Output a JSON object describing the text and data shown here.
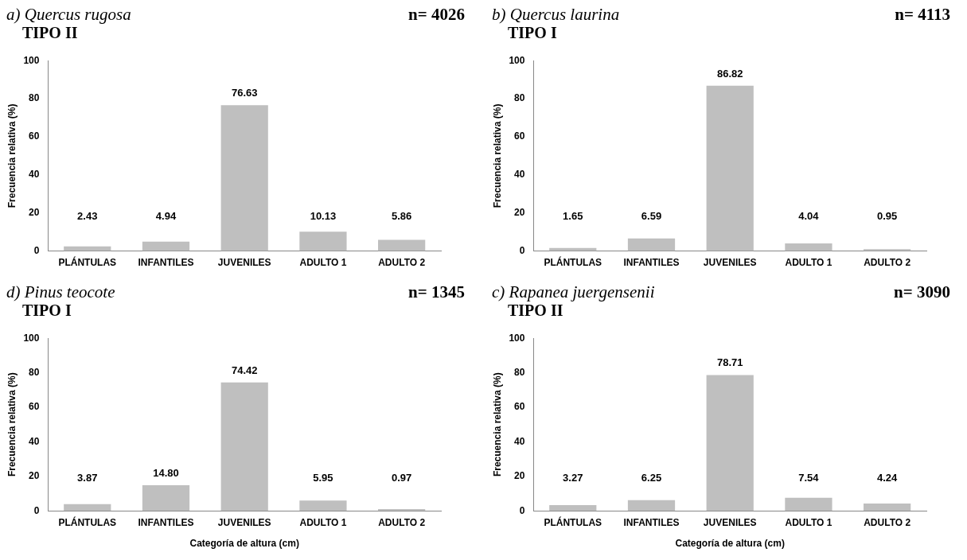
{
  "chart_data": [
    {
      "type": "bar",
      "title": "a) Quercus rugosa",
      "subtitle": "TIPO II",
      "annotations": [
        "n= 4026"
      ],
      "ylabel": "Frecuencia relativa (%)",
      "categories": [
        "PLÁNTULAS",
        "INFANTILES",
        "JUVENILES",
        "ADULTO 1",
        "ADULTO 2"
      ],
      "values": [
        2.43,
        4.94,
        76.63,
        10.13,
        5.86
      ],
      "value_labels": [
        "2.43",
        "4.94",
        "76.63",
        "10.13",
        "5.86"
      ],
      "color": "#bfbfbf",
      "ylim": [
        0,
        100
      ],
      "yticks": [
        0,
        20,
        40,
        60,
        80,
        100
      ],
      "grid": false,
      "legend": false
    },
    {
      "type": "bar",
      "title": "b) Quercus laurina",
      "subtitle": "TIPO I",
      "annotations": [
        "n= 4113"
      ],
      "ylabel": "Frecuencia relativa (%)",
      "categories": [
        "PLÁNTULAS",
        "INFANTILES",
        "JUVENILES",
        "ADULTO 1",
        "ADULTO 2"
      ],
      "values": [
        1.65,
        6.59,
        86.82,
        4.04,
        0.95
      ],
      "value_labels": [
        "1.65",
        "6.59",
        "86.82",
        "4.04",
        "0.95"
      ],
      "color": "#bfbfbf",
      "ylim": [
        0,
        100
      ],
      "yticks": [
        0,
        20,
        40,
        60,
        80,
        100
      ],
      "grid": false,
      "legend": false
    },
    {
      "type": "bar",
      "title": "d) Pinus teocote",
      "subtitle": "TIPO I",
      "annotations": [
        "n= 1345"
      ],
      "xlabel": "Categoría de altura (cm)",
      "ylabel": "Frecuencia relativa (%)",
      "categories": [
        "PLÁNTULAS",
        "INFANTILES",
        "JUVENILES",
        "ADULTO 1",
        "ADULTO 2"
      ],
      "values": [
        3.87,
        14.8,
        74.42,
        5.95,
        0.97
      ],
      "value_labels": [
        "3.87",
        "14.80",
        "74.42",
        "5.95",
        "0.97"
      ],
      "color": "#bfbfbf",
      "ylim": [
        0,
        100
      ],
      "yticks": [
        0,
        20,
        40,
        60,
        80,
        100
      ],
      "grid": false,
      "legend": false
    },
    {
      "type": "bar",
      "title": "c) Rapanea juergensenii",
      "subtitle": "TIPO II",
      "annotations": [
        "n= 3090"
      ],
      "xlabel": "Categoría de altura (cm)",
      "ylabel": "Frecuencia relativa (%)",
      "categories": [
        "PLÁNTULAS",
        "INFANTILES",
        "JUVENILES",
        "ADULTO 1",
        "ADULTO 2"
      ],
      "values": [
        3.27,
        6.25,
        78.71,
        7.54,
        4.24
      ],
      "value_labels": [
        "3.27",
        "6.25",
        "78.71",
        "7.54",
        "4.24"
      ],
      "color": "#bfbfbf",
      "ylim": [
        0,
        100
      ],
      "yticks": [
        0,
        20,
        40,
        60,
        80,
        100
      ],
      "grid": false,
      "legend": false
    }
  ]
}
